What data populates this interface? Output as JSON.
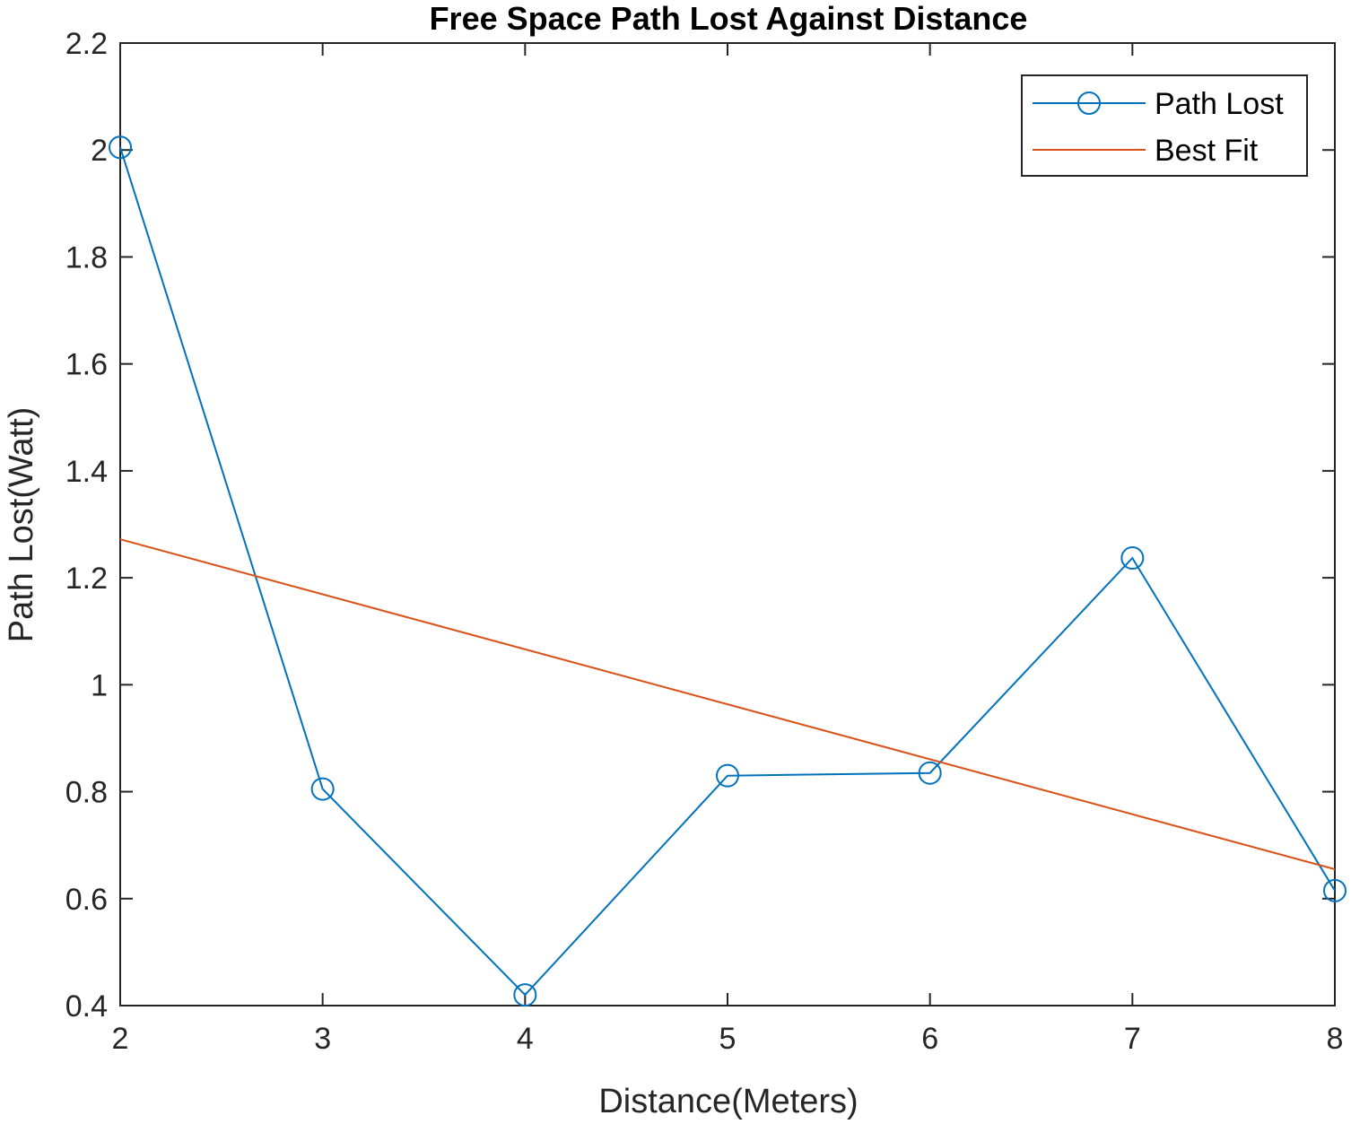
{
  "chart_data": {
    "type": "line",
    "title": "Free Space Path Lost Against Distance",
    "xlabel": "Distance(Meters)",
    "ylabel": "Path Lost(Watt)",
    "xlim": [
      2,
      8
    ],
    "ylim": [
      0.4,
      2.2
    ],
    "xticks": [
      2,
      3,
      4,
      5,
      6,
      7,
      8
    ],
    "yticks": [
      0.4,
      0.6,
      0.8,
      1,
      1.2,
      1.4,
      1.6,
      1.8,
      2,
      2.2
    ],
    "grid": false,
    "legend_position": "top-right",
    "series": [
      {
        "name": "Path Lost",
        "color": "#0072BD",
        "marker": "circle",
        "x": [
          2,
          3,
          4,
          5,
          6,
          7,
          8
        ],
        "y": [
          2.005,
          0.805,
          0.42,
          0.83,
          0.835,
          1.237,
          0.615
        ]
      },
      {
        "name": "Best Fit",
        "color": "#D95319",
        "marker": "none",
        "x": [
          2,
          8
        ],
        "y": [
          1.272,
          0.655
        ]
      }
    ]
  }
}
